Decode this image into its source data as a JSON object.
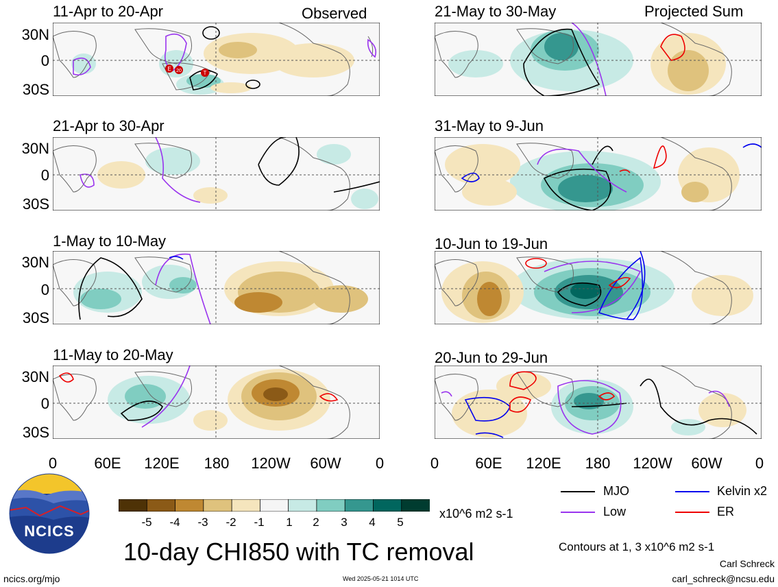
{
  "headers": {
    "left": "Observed",
    "right": "Projected Sum"
  },
  "panels": [
    {
      "title": "11-Apr to 20-Apr"
    },
    {
      "title": "21-Apr to 30-Apr"
    },
    {
      "title": "1-May to 10-May"
    },
    {
      "title": "11-May to 20-May"
    },
    {
      "title": "21-May to 30-May"
    },
    {
      "title": "31-May to 9-Jun"
    },
    {
      "title": "10-Jun to 19-Jun"
    },
    {
      "title": "20-Jun to 29-Jun"
    }
  ],
  "lat_labels": [
    "30N",
    "0",
    "30S"
  ],
  "lon_labels": [
    "0",
    "60E",
    "120E",
    "180",
    "120W",
    "60W",
    "0"
  ],
  "colorbar": {
    "ticks": [
      "-5",
      "-4",
      "-3",
      "-2",
      "-1",
      "1",
      "2",
      "3",
      "4",
      "5"
    ],
    "colors": [
      "#4e3206",
      "#8b5a17",
      "#bf8832",
      "#dfc27d",
      "#f5e5bd",
      "#f5f5f5",
      "#c7eae5",
      "#80cdc1",
      "#35978f",
      "#01665e",
      "#003c30"
    ],
    "units": "x10^6 m2 s-1"
  },
  "legend": {
    "items": [
      {
        "label": "MJO",
        "color": "#000000"
      },
      {
        "label": "Kelvin x2",
        "color": "#0000ee"
      },
      {
        "label": "Low",
        "color": "#9933ee"
      },
      {
        "label": "ER",
        "color": "#ee0000"
      }
    ],
    "contours_note": "Contours at 1, 3 x10^6 m2 s-1"
  },
  "main_title": "10-day CHI850 with TC removal",
  "logo": {
    "text": "NCICS"
  },
  "footer": {
    "site": "ncics.org/mjo",
    "timestamp": "Wed 2025-05-21 1014 UTC",
    "author": "Carl Schreck",
    "email": "carl_schreck@ncsu.edu"
  },
  "tc_markers": [
    "E",
    "20",
    "T"
  ]
}
